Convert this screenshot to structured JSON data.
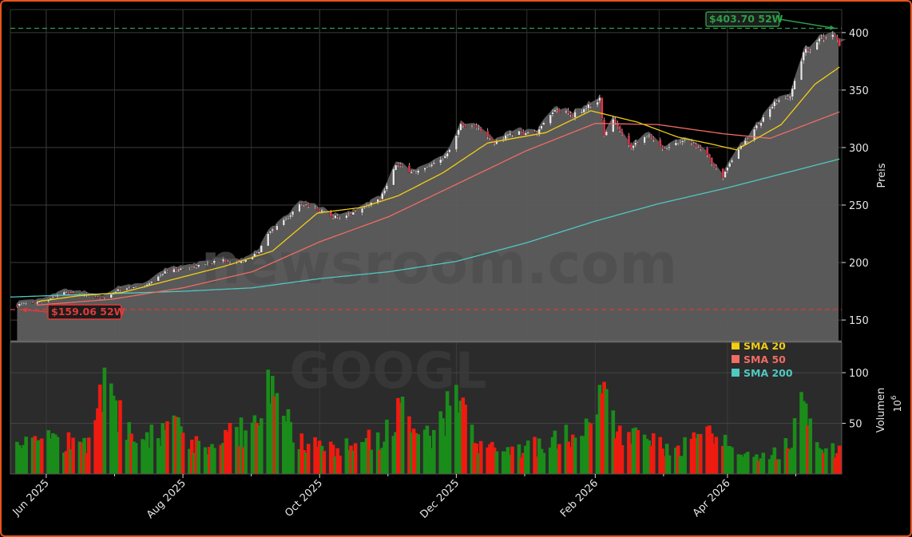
{
  "chart_data": {
    "type": "candlestick",
    "ticker_watermark": "GOOGL",
    "site_watermark": "newsroom.com",
    "price_axis": {
      "label": "Preis",
      "ticks": [
        "150",
        "200",
        "250",
        "300",
        "350",
        "400"
      ],
      "ylim": [
        132,
        420
      ]
    },
    "volume_axis": {
      "label": "Volumen",
      "exponent_label": "10",
      "exponent": "6",
      "ticks": [
        "50",
        "100"
      ],
      "ylim": [
        0,
        130
      ]
    },
    "x_axis": {
      "ticks": [
        "Jun 2025",
        "Aug 2025",
        "Oct 2025",
        "Dec 2025",
        "Feb 2026",
        "Apr 2026"
      ],
      "tick_dates": [
        "2025-06-01",
        "2025-08-01",
        "2025-10-01",
        "2025-12-01",
        "2026-02-01",
        "2026-04-01"
      ],
      "start_date": "2025-05-16",
      "end_date": "2026-05-22"
    },
    "annotations": {
      "high_52w": {
        "value": 403.7,
        "label": "$403.70 52W",
        "date": "2026-05-19",
        "color": "#2e9e48"
      },
      "low_52w": {
        "value": 159.06,
        "label": "$159.06 52W",
        "date": "2025-05-21",
        "color": "#e03a3a"
      }
    },
    "legend": {
      "position": "lower-right of price panel",
      "items": [
        {
          "name": "SMA 20",
          "color": "#f2cd16"
        },
        {
          "name": "SMA 50",
          "color": "#f06c64"
        },
        {
          "name": "SMA 200",
          "color": "#4fc8c0"
        }
      ]
    },
    "price_anchors": [
      [
        "2025-05-19",
        163
      ],
      [
        "2025-06-01",
        167
      ],
      [
        "2025-06-08",
        174
      ],
      [
        "2025-06-18",
        172
      ],
      [
        "2025-06-25",
        168
      ],
      [
        "2025-07-03",
        176
      ],
      [
        "2025-07-15",
        180
      ],
      [
        "2025-07-24",
        192
      ],
      [
        "2025-08-05",
        196
      ],
      [
        "2025-08-18",
        202
      ],
      [
        "2025-08-28",
        200
      ],
      [
        "2025-09-04",
        210
      ],
      [
        "2025-09-08",
        225
      ],
      [
        "2025-09-17",
        240
      ],
      [
        "2025-09-23",
        252
      ],
      [
        "2025-10-02",
        245
      ],
      [
        "2025-10-10",
        238
      ],
      [
        "2025-10-17",
        244
      ],
      [
        "2025-10-28",
        256
      ],
      [
        "2025-11-04",
        285
      ],
      [
        "2025-11-12",
        278
      ],
      [
        "2025-11-19",
        283
      ],
      [
        "2025-11-25",
        290
      ],
      [
        "2025-11-28",
        300
      ],
      [
        "2025-12-03",
        320
      ],
      [
        "2025-12-10",
        318
      ],
      [
        "2025-12-18",
        304
      ],
      [
        "2025-12-26",
        313
      ],
      [
        "2026-01-06",
        312
      ],
      [
        "2026-01-14",
        333
      ],
      [
        "2026-01-22",
        328
      ],
      [
        "2026-02-03",
        342
      ],
      [
        "2026-02-05",
        310
      ],
      [
        "2026-02-09",
        324
      ],
      [
        "2026-02-17",
        301
      ],
      [
        "2026-02-24",
        311
      ],
      [
        "2026-03-04",
        299
      ],
      [
        "2026-03-12",
        307
      ],
      [
        "2026-03-18",
        302
      ],
      [
        "2026-03-24",
        290
      ],
      [
        "2026-03-30",
        275
      ],
      [
        "2026-04-06",
        298
      ],
      [
        "2026-04-14",
        318
      ],
      [
        "2026-04-22",
        338
      ],
      [
        "2026-04-29",
        345
      ],
      [
        "2026-05-05",
        383
      ],
      [
        "2026-05-13",
        395
      ],
      [
        "2026-05-19",
        398
      ],
      [
        "2026-05-21",
        390
      ]
    ],
    "sma20_anchors": [
      [
        "2025-05-28",
        166
      ],
      [
        "2025-06-15",
        171
      ],
      [
        "2025-07-05",
        174
      ],
      [
        "2025-07-25",
        184
      ],
      [
        "2025-08-20",
        197
      ],
      [
        "2025-09-10",
        210
      ],
      [
        "2025-09-30",
        243
      ],
      [
        "2025-10-20",
        248
      ],
      [
        "2025-11-05",
        258
      ],
      [
        "2025-11-25",
        278
      ],
      [
        "2025-12-15",
        304
      ],
      [
        "2026-01-10",
        313
      ],
      [
        "2026-01-30",
        332
      ],
      [
        "2026-02-20",
        322
      ],
      [
        "2026-03-10",
        309
      ],
      [
        "2026-03-25",
        303
      ],
      [
        "2026-04-05",
        298
      ],
      [
        "2026-04-25",
        320
      ],
      [
        "2026-05-10",
        355
      ],
      [
        "2026-05-21",
        370
      ]
    ],
    "sma50_anchors": [
      [
        "2025-05-28",
        163
      ],
      [
        "2025-06-30",
        168
      ],
      [
        "2025-08-01",
        178
      ],
      [
        "2025-09-01",
        192
      ],
      [
        "2025-10-01",
        218
      ],
      [
        "2025-11-01",
        240
      ],
      [
        "2025-12-01",
        268
      ],
      [
        "2026-01-01",
        297
      ],
      [
        "2026-02-01",
        321
      ],
      [
        "2026-03-01",
        320
      ],
      [
        "2026-03-30",
        312
      ],
      [
        "2026-04-20",
        308
      ],
      [
        "2026-05-21",
        331
      ]
    ],
    "sma200_anchors": [
      [
        "2025-05-16",
        170
      ],
      [
        "2025-06-15",
        172
      ],
      [
        "2025-08-01",
        175
      ],
      [
        "2025-09-01",
        178
      ],
      [
        "2025-10-01",
        186
      ],
      [
        "2025-11-01",
        192
      ],
      [
        "2025-12-01",
        201
      ],
      [
        "2026-01-01",
        217
      ],
      [
        "2026-02-01",
        236
      ],
      [
        "2026-03-01",
        251
      ],
      [
        "2026-04-01",
        265
      ],
      [
        "2026-05-01",
        280
      ],
      [
        "2026-05-21",
        290
      ]
    ],
    "volume_anchors": [
      [
        "2025-05-16",
        30
      ],
      [
        "2025-06-01",
        38
      ],
      [
        "2025-06-20",
        36
      ],
      [
        "2025-06-27",
        105
      ],
      [
        "2025-07-10",
        32
      ],
      [
        "2025-07-25",
        52
      ],
      [
        "2025-08-10",
        30
      ],
      [
        "2025-09-05",
        55
      ],
      [
        "2025-09-08",
        103
      ],
      [
        "2025-09-20",
        35
      ],
      [
        "2025-10-15",
        28
      ],
      [
        "2025-11-01",
        45
      ],
      [
        "2025-11-05",
        75
      ],
      [
        "2025-11-15",
        32
      ],
      [
        "2025-11-25",
        55
      ],
      [
        "2025-12-01",
        88
      ],
      [
        "2025-12-10",
        30
      ],
      [
        "2025-12-28",
        25
      ],
      [
        "2026-01-10",
        33
      ],
      [
        "2026-01-30",
        50
      ],
      [
        "2026-02-03",
        88
      ],
      [
        "2026-02-15",
        40
      ],
      [
        "2026-03-10",
        28
      ],
      [
        "2026-03-25",
        40
      ],
      [
        "2026-04-05",
        25
      ],
      [
        "2026-04-25",
        22
      ],
      [
        "2026-05-05",
        72
      ],
      [
        "2026-05-10",
        25
      ],
      [
        "2026-05-21",
        28
      ]
    ]
  }
}
